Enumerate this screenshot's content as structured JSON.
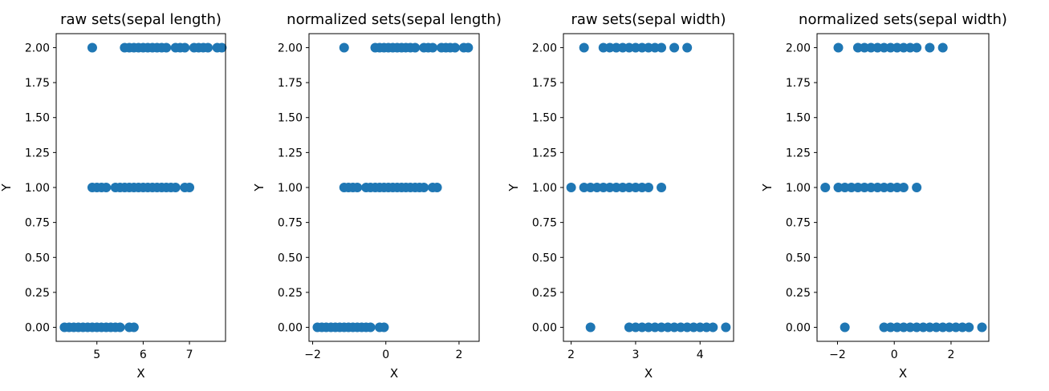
{
  "chart_data": [
    {
      "type": "scatter",
      "title": "raw sets(sepal length)",
      "xlabel": "X",
      "ylabel": "Y",
      "xlim": [
        4.12,
        7.78
      ],
      "ylim": [
        -0.1,
        2.1
      ],
      "xticks": [
        5,
        6,
        7
      ],
      "xtick_labels": [
        "5",
        "6",
        "7"
      ],
      "yticks": [
        0,
        0.25,
        0.5,
        0.75,
        1,
        1.25,
        1.5,
        1.75,
        2
      ],
      "ytick_labels": [
        "0.00",
        "0.25",
        "0.50",
        "0.75",
        "1.00",
        "1.25",
        "1.50",
        "1.75",
        "2.00"
      ],
      "points": [
        {
          "x": 4.3,
          "y": 0
        },
        {
          "x": 4.4,
          "y": 0
        },
        {
          "x": 4.5,
          "y": 0
        },
        {
          "x": 4.6,
          "y": 0
        },
        {
          "x": 4.7,
          "y": 0
        },
        {
          "x": 4.8,
          "y": 0
        },
        {
          "x": 4.9,
          "y": 0
        },
        {
          "x": 5.0,
          "y": 0
        },
        {
          "x": 5.1,
          "y": 0
        },
        {
          "x": 5.2,
          "y": 0
        },
        {
          "x": 5.3,
          "y": 0
        },
        {
          "x": 5.4,
          "y": 0
        },
        {
          "x": 5.5,
          "y": 0
        },
        {
          "x": 5.7,
          "y": 0
        },
        {
          "x": 5.8,
          "y": 0
        },
        {
          "x": 4.9,
          "y": 1
        },
        {
          "x": 5.0,
          "y": 1
        },
        {
          "x": 5.1,
          "y": 1
        },
        {
          "x": 5.2,
          "y": 1
        },
        {
          "x": 5.4,
          "y": 1
        },
        {
          "x": 5.5,
          "y": 1
        },
        {
          "x": 5.6,
          "y": 1
        },
        {
          "x": 5.7,
          "y": 1
        },
        {
          "x": 5.8,
          "y": 1
        },
        {
          "x": 5.9,
          "y": 1
        },
        {
          "x": 6.0,
          "y": 1
        },
        {
          "x": 6.1,
          "y": 1
        },
        {
          "x": 6.2,
          "y": 1
        },
        {
          "x": 6.3,
          "y": 1
        },
        {
          "x": 6.4,
          "y": 1
        },
        {
          "x": 6.5,
          "y": 1
        },
        {
          "x": 6.6,
          "y": 1
        },
        {
          "x": 6.7,
          "y": 1
        },
        {
          "x": 6.9,
          "y": 1
        },
        {
          "x": 7.0,
          "y": 1
        },
        {
          "x": 4.9,
          "y": 2
        },
        {
          "x": 5.6,
          "y": 2
        },
        {
          "x": 5.7,
          "y": 2
        },
        {
          "x": 5.8,
          "y": 2
        },
        {
          "x": 5.9,
          "y": 2
        },
        {
          "x": 6.0,
          "y": 2
        },
        {
          "x": 6.1,
          "y": 2
        },
        {
          "x": 6.2,
          "y": 2
        },
        {
          "x": 6.3,
          "y": 2
        },
        {
          "x": 6.4,
          "y": 2
        },
        {
          "x": 6.5,
          "y": 2
        },
        {
          "x": 6.7,
          "y": 2
        },
        {
          "x": 6.8,
          "y": 2
        },
        {
          "x": 6.9,
          "y": 2
        },
        {
          "x": 7.1,
          "y": 2
        },
        {
          "x": 7.2,
          "y": 2
        },
        {
          "x": 7.3,
          "y": 2
        },
        {
          "x": 7.4,
          "y": 2
        },
        {
          "x": 7.6,
          "y": 2
        },
        {
          "x": 7.7,
          "y": 2
        }
      ]
    },
    {
      "type": "scatter",
      "title": "normalized sets(sepal length)",
      "xlabel": "X",
      "ylabel": "Y",
      "xlim": [
        -2.1,
        2.55
      ],
      "ylim": [
        -0.1,
        2.1
      ],
      "xticks": [
        -2,
        0,
        2
      ],
      "xtick_labels": [
        "−2",
        "0",
        "2"
      ],
      "yticks": [
        0,
        0.25,
        0.5,
        0.75,
        1,
        1.25,
        1.5,
        1.75,
        2
      ],
      "ytick_labels": [
        "0.00",
        "0.25",
        "0.50",
        "0.75",
        "1.00",
        "1.25",
        "1.50",
        "1.75",
        "2.00"
      ],
      "points": [
        {
          "x": -1.87,
          "y": 0
        },
        {
          "x": -1.75,
          "y": 0
        },
        {
          "x": -1.63,
          "y": 0
        },
        {
          "x": -1.5,
          "y": 0
        },
        {
          "x": -1.38,
          "y": 0
        },
        {
          "x": -1.26,
          "y": 0
        },
        {
          "x": -1.14,
          "y": 0
        },
        {
          "x": -1.02,
          "y": 0
        },
        {
          "x": -0.9,
          "y": 0
        },
        {
          "x": -0.78,
          "y": 0
        },
        {
          "x": -0.66,
          "y": 0
        },
        {
          "x": -0.54,
          "y": 0
        },
        {
          "x": -0.42,
          "y": 0
        },
        {
          "x": -0.17,
          "y": 0
        },
        {
          "x": -0.05,
          "y": 0
        },
        {
          "x": -1.14,
          "y": 1
        },
        {
          "x": -1.02,
          "y": 1
        },
        {
          "x": -0.9,
          "y": 1
        },
        {
          "x": -0.78,
          "y": 1
        },
        {
          "x": -0.54,
          "y": 1
        },
        {
          "x": -0.42,
          "y": 1
        },
        {
          "x": -0.29,
          "y": 1
        },
        {
          "x": -0.17,
          "y": 1
        },
        {
          "x": -0.05,
          "y": 1
        },
        {
          "x": 0.07,
          "y": 1
        },
        {
          "x": 0.19,
          "y": 1
        },
        {
          "x": 0.31,
          "y": 1
        },
        {
          "x": 0.43,
          "y": 1
        },
        {
          "x": 0.55,
          "y": 1
        },
        {
          "x": 0.67,
          "y": 1
        },
        {
          "x": 0.8,
          "y": 1
        },
        {
          "x": 0.92,
          "y": 1
        },
        {
          "x": 1.04,
          "y": 1
        },
        {
          "x": 1.28,
          "y": 1
        },
        {
          "x": 1.4,
          "y": 1
        },
        {
          "x": -1.14,
          "y": 2
        },
        {
          "x": -0.29,
          "y": 2
        },
        {
          "x": -0.17,
          "y": 2
        },
        {
          "x": -0.05,
          "y": 2
        },
        {
          "x": 0.07,
          "y": 2
        },
        {
          "x": 0.19,
          "y": 2
        },
        {
          "x": 0.31,
          "y": 2
        },
        {
          "x": 0.43,
          "y": 2
        },
        {
          "x": 0.55,
          "y": 2
        },
        {
          "x": 0.67,
          "y": 2
        },
        {
          "x": 0.8,
          "y": 2
        },
        {
          "x": 1.04,
          "y": 2
        },
        {
          "x": 1.16,
          "y": 2
        },
        {
          "x": 1.28,
          "y": 2
        },
        {
          "x": 1.52,
          "y": 2
        },
        {
          "x": 1.64,
          "y": 2
        },
        {
          "x": 1.76,
          "y": 2
        },
        {
          "x": 1.89,
          "y": 2
        },
        {
          "x": 2.13,
          "y": 2
        },
        {
          "x": 2.25,
          "y": 2
        }
      ]
    },
    {
      "type": "scatter",
      "title": "raw sets(sepal width)",
      "xlabel": "X",
      "ylabel": "Y",
      "xlim": [
        1.88,
        4.52
      ],
      "ylim": [
        -0.1,
        2.1
      ],
      "xticks": [
        2,
        3,
        4
      ],
      "xtick_labels": [
        "2",
        "3",
        "4"
      ],
      "yticks": [
        0,
        0.25,
        0.5,
        0.75,
        1,
        1.25,
        1.5,
        1.75,
        2
      ],
      "ytick_labels": [
        "0.00",
        "0.25",
        "0.50",
        "0.75",
        "1.00",
        "1.25",
        "1.50",
        "1.75",
        "2.00"
      ],
      "points": [
        {
          "x": 2.3,
          "y": 0
        },
        {
          "x": 2.9,
          "y": 0
        },
        {
          "x": 3.0,
          "y": 0
        },
        {
          "x": 3.1,
          "y": 0
        },
        {
          "x": 3.2,
          "y": 0
        },
        {
          "x": 3.3,
          "y": 0
        },
        {
          "x": 3.4,
          "y": 0
        },
        {
          "x": 3.5,
          "y": 0
        },
        {
          "x": 3.6,
          "y": 0
        },
        {
          "x": 3.7,
          "y": 0
        },
        {
          "x": 3.8,
          "y": 0
        },
        {
          "x": 3.9,
          "y": 0
        },
        {
          "x": 4.0,
          "y": 0
        },
        {
          "x": 4.1,
          "y": 0
        },
        {
          "x": 4.2,
          "y": 0
        },
        {
          "x": 4.4,
          "y": 0
        },
        {
          "x": 2.0,
          "y": 1
        },
        {
          "x": 2.2,
          "y": 1
        },
        {
          "x": 2.3,
          "y": 1
        },
        {
          "x": 2.4,
          "y": 1
        },
        {
          "x": 2.5,
          "y": 1
        },
        {
          "x": 2.6,
          "y": 1
        },
        {
          "x": 2.7,
          "y": 1
        },
        {
          "x": 2.8,
          "y": 1
        },
        {
          "x": 2.9,
          "y": 1
        },
        {
          "x": 3.0,
          "y": 1
        },
        {
          "x": 3.1,
          "y": 1
        },
        {
          "x": 3.2,
          "y": 1
        },
        {
          "x": 3.4,
          "y": 1
        },
        {
          "x": 2.2,
          "y": 2
        },
        {
          "x": 2.5,
          "y": 2
        },
        {
          "x": 2.6,
          "y": 2
        },
        {
          "x": 2.7,
          "y": 2
        },
        {
          "x": 2.8,
          "y": 2
        },
        {
          "x": 2.9,
          "y": 2
        },
        {
          "x": 3.0,
          "y": 2
        },
        {
          "x": 3.1,
          "y": 2
        },
        {
          "x": 3.2,
          "y": 2
        },
        {
          "x": 3.3,
          "y": 2
        },
        {
          "x": 3.4,
          "y": 2
        },
        {
          "x": 3.6,
          "y": 2
        },
        {
          "x": 3.8,
          "y": 2
        }
      ]
    },
    {
      "type": "scatter",
      "title": "normalized sets(sepal width)",
      "xlabel": "X",
      "ylabel": "Y",
      "xlim": [
        -2.72,
        3.33
      ],
      "ylim": [
        -0.1,
        2.1
      ],
      "xticks": [
        -2,
        0,
        2
      ],
      "xtick_labels": [
        "−2",
        "0",
        "2"
      ],
      "yticks": [
        0,
        0.25,
        0.5,
        0.75,
        1,
        1.25,
        1.5,
        1.75,
        2
      ],
      "ytick_labels": [
        "0.00",
        "0.25",
        "0.50",
        "0.75",
        "1.00",
        "1.25",
        "1.50",
        "1.75",
        "2.00"
      ],
      "points": [
        {
          "x": -1.74,
          "y": 0
        },
        {
          "x": -0.36,
          "y": 0
        },
        {
          "x": -0.13,
          "y": 0
        },
        {
          "x": 0.1,
          "y": 0
        },
        {
          "x": 0.33,
          "y": 0
        },
        {
          "x": 0.56,
          "y": 0
        },
        {
          "x": 0.79,
          "y": 0
        },
        {
          "x": 1.02,
          "y": 0
        },
        {
          "x": 1.25,
          "y": 0
        },
        {
          "x": 1.48,
          "y": 0
        },
        {
          "x": 1.71,
          "y": 0
        },
        {
          "x": 1.94,
          "y": 0
        },
        {
          "x": 2.17,
          "y": 0
        },
        {
          "x": 2.4,
          "y": 0
        },
        {
          "x": 2.63,
          "y": 0
        },
        {
          "x": 3.09,
          "y": 0
        },
        {
          "x": -2.43,
          "y": 1
        },
        {
          "x": -1.97,
          "y": 1
        },
        {
          "x": -1.74,
          "y": 1
        },
        {
          "x": -1.51,
          "y": 1
        },
        {
          "x": -1.28,
          "y": 1
        },
        {
          "x": -1.05,
          "y": 1
        },
        {
          "x": -0.82,
          "y": 1
        },
        {
          "x": -0.59,
          "y": 1
        },
        {
          "x": -0.36,
          "y": 1
        },
        {
          "x": -0.13,
          "y": 1
        },
        {
          "x": 0.1,
          "y": 1
        },
        {
          "x": 0.33,
          "y": 1
        },
        {
          "x": 0.79,
          "y": 1
        },
        {
          "x": -1.97,
          "y": 2
        },
        {
          "x": -1.28,
          "y": 2
        },
        {
          "x": -1.05,
          "y": 2
        },
        {
          "x": -0.82,
          "y": 2
        },
        {
          "x": -0.59,
          "y": 2
        },
        {
          "x": -0.36,
          "y": 2
        },
        {
          "x": -0.13,
          "y": 2
        },
        {
          "x": 0.1,
          "y": 2
        },
        {
          "x": 0.33,
          "y": 2
        },
        {
          "x": 0.56,
          "y": 2
        },
        {
          "x": 0.79,
          "y": 2
        },
        {
          "x": 1.25,
          "y": 2
        },
        {
          "x": 1.71,
          "y": 2
        }
      ]
    }
  ],
  "colors": {
    "marker": "#1f77b4",
    "axis": "#000000"
  }
}
